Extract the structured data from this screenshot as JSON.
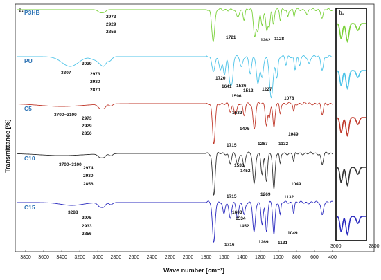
{
  "chart_data": {
    "type": "line",
    "panel_labels": {
      "main": "a.",
      "inset": "b."
    },
    "xlabel": "Wave number [cm⁻¹]",
    "ylabel": "Transmittance [%]",
    "xlim": [
      3900,
      400
    ],
    "x_ticks": [
      3800,
      3600,
      3400,
      3200,
      3000,
      2800,
      2600,
      2400,
      2200,
      2000,
      1800,
      1600,
      1400,
      1200,
      1000,
      800,
      600,
      400
    ],
    "inset": {
      "xlim": [
        3000,
        2800
      ],
      "x_ticks": [
        3000,
        2800
      ]
    },
    "grid": false,
    "series": [
      {
        "name": "P3HB",
        "color": "#7ad13a",
        "label_color": "#2e74b5",
        "band_labels": [
          "2973",
          "2929",
          "2856",
          "1721",
          "1262",
          "1128"
        ]
      },
      {
        "name": "PU",
        "color": "#4cc3e8",
        "label_color": "#2e74b5",
        "band_labels": [
          "3307",
          "3039",
          "2973",
          "2930",
          "2870",
          "1720",
          "1641",
          "1596",
          "1536",
          "1512",
          "1227",
          "1078"
        ]
      },
      {
        "name": "C5",
        "color": "#c0392b",
        "label_color": "#2e74b5",
        "band_labels": [
          "3700−3100",
          "2973",
          "2929",
          "2856",
          "1532",
          "1475",
          "1715",
          "1267",
          "1132",
          "1049"
        ]
      },
      {
        "name": "C10",
        "color": "#333333",
        "label_color": "#2e74b5",
        "band_labels": [
          "3700−3100",
          "2974",
          "2930",
          "2856",
          "1533",
          "1452",
          "1715",
          "1269",
          "1132",
          "1049"
        ]
      },
      {
        "name": "C15",
        "color": "#2b2bbf",
        "label_color": "#2e74b5",
        "band_labels": [
          "3288",
          "2975",
          "2933",
          "2856",
          "1603",
          "1534",
          "1452",
          "1716",
          "1269",
          "1131",
          "1049"
        ]
      }
    ]
  }
}
